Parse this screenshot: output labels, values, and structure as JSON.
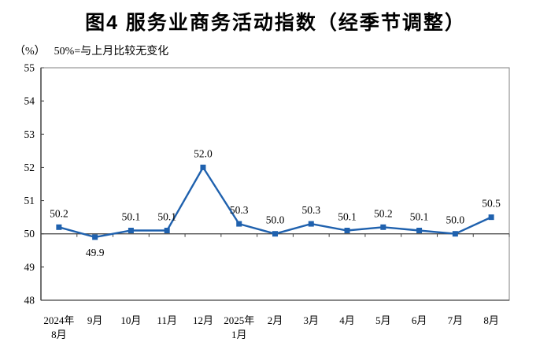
{
  "chart_data": {
    "type": "line",
    "title": "图4 服务业商务活动指数（经季节调整）",
    "unit_label": "（%）",
    "note": "50%=与上月比较无变化",
    "categories": [
      [
        "2024年",
        "8月"
      ],
      [
        "9月"
      ],
      [
        "10月"
      ],
      [
        "11月"
      ],
      [
        "12月"
      ],
      [
        "2025年",
        "1月"
      ],
      [
        "2月"
      ],
      [
        "3月"
      ],
      [
        "4月"
      ],
      [
        "5月"
      ],
      [
        "6月"
      ],
      [
        "7月"
      ],
      [
        "8月"
      ]
    ],
    "values": [
      50.2,
      49.9,
      50.1,
      50.1,
      52.0,
      50.3,
      50.0,
      50.3,
      50.1,
      50.2,
      50.1,
      50.0,
      50.5
    ],
    "data_labels": [
      "50.2",
      "49.9",
      "50.1",
      "50.1",
      "52.0",
      "50.3",
      "50.0",
      "50.3",
      "50.1",
      "50.2",
      "50.1",
      "50.0",
      "50.5"
    ],
    "label_positions": [
      "above",
      "below",
      "above",
      "above",
      "above",
      "above",
      "above",
      "above",
      "above",
      "above",
      "above",
      "above",
      "above"
    ],
    "yticks": [
      55,
      54,
      53,
      52,
      51,
      50,
      49,
      48
    ],
    "ylim": [
      48,
      55
    ],
    "axis_cross_value": 50,
    "grid": false,
    "legend": null,
    "marker": "square",
    "line_color": "#1F61AE",
    "axis_color": "#404040",
    "border_color": "#808080",
    "text_color": "#000000"
  }
}
